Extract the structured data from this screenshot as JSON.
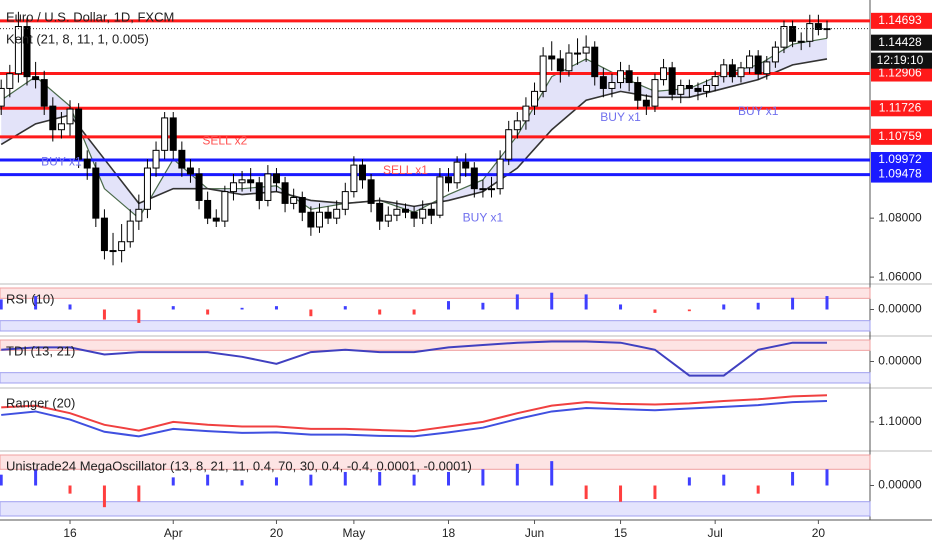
{
  "chart_data": [
    {
      "type": "candlestick",
      "title": "Euro / U.S. Dollar, 1D, FXCM",
      "subtitle": "Kent (21, 8, 11, 1, 0.005)",
      "xlim": [
        -0.14,
        101
      ],
      "ylim": [
        1.058,
        1.154
      ],
      "yticks": [
        {
          "value": 1.06,
          "label": "1.06000"
        },
        {
          "value": 1.08,
          "label": "1.08000"
        }
      ],
      "xticks": [
        {
          "value": 8,
          "label": "16"
        },
        {
          "value": 20,
          "label": "Apr"
        },
        {
          "value": 32,
          "label": "20"
        },
        {
          "value": 41,
          "label": "May"
        },
        {
          "value": 52,
          "label": "18"
        },
        {
          "value": 62,
          "label": "Jun"
        },
        {
          "value": 72,
          "label": "15"
        },
        {
          "value": 83,
          "label": "Jul"
        },
        {
          "value": 95,
          "label": "20"
        }
      ],
      "up_color": "#ffffff",
      "down_color": "#000000",
      "ohlc": [
        [
          1.118,
          1.127,
          1.115,
          1.124
        ],
        [
          1.124,
          1.132,
          1.121,
          1.129
        ],
        [
          1.129,
          1.15,
          1.126,
          1.145
        ],
        [
          1.145,
          1.148,
          1.125,
          1.128
        ],
        [
          1.128,
          1.133,
          1.124,
          1.127
        ],
        [
          1.127,
          1.13,
          1.115,
          1.118
        ],
        [
          1.118,
          1.121,
          1.106,
          1.11
        ],
        [
          1.11,
          1.116,
          1.107,
          1.112
        ],
        [
          1.112,
          1.12,
          1.108,
          1.117
        ],
        [
          1.117,
          1.119,
          1.097,
          1.1
        ],
        [
          1.1,
          1.103,
          1.093,
          1.097
        ],
        [
          1.097,
          1.099,
          1.077,
          1.08
        ],
        [
          1.08,
          1.083,
          1.066,
          1.069
        ],
        [
          1.069,
          1.075,
          1.064,
          1.069
        ],
        [
          1.069,
          1.078,
          1.065,
          1.072
        ],
        [
          1.072,
          1.083,
          1.07,
          1.079
        ],
        [
          1.079,
          1.088,
          1.076,
          1.083
        ],
        [
          1.083,
          1.1,
          1.08,
          1.097
        ],
        [
          1.097,
          1.106,
          1.094,
          1.103
        ],
        [
          1.103,
          1.116,
          1.1,
          1.114
        ],
        [
          1.114,
          1.116,
          1.1,
          1.103
        ],
        [
          1.103,
          1.106,
          1.094,
          1.097
        ],
        [
          1.097,
          1.1,
          1.092,
          1.095
        ],
        [
          1.095,
          1.097,
          1.083,
          1.086
        ],
        [
          1.086,
          1.089,
          1.078,
          1.08
        ],
        [
          1.08,
          1.083,
          1.077,
          1.079
        ],
        [
          1.079,
          1.091,
          1.077,
          1.089
        ],
        [
          1.089,
          1.095,
          1.086,
          1.092
        ],
        [
          1.092,
          1.096,
          1.089,
          1.093
        ],
        [
          1.093,
          1.097,
          1.089,
          1.092
        ],
        [
          1.092,
          1.094,
          1.083,
          1.086
        ],
        [
          1.086,
          1.098,
          1.084,
          1.095
        ],
        [
          1.095,
          1.097,
          1.089,
          1.092
        ],
        [
          1.092,
          1.094,
          1.082,
          1.085
        ],
        [
          1.085,
          1.09,
          1.083,
          1.087
        ],
        [
          1.087,
          1.089,
          1.079,
          1.082
        ],
        [
          1.082,
          1.084,
          1.074,
          1.077
        ],
        [
          1.077,
          1.085,
          1.075,
          1.082
        ],
        [
          1.082,
          1.084,
          1.078,
          1.08
        ],
        [
          1.08,
          1.086,
          1.078,
          1.083
        ],
        [
          1.083,
          1.092,
          1.081,
          1.089
        ],
        [
          1.089,
          1.101,
          1.087,
          1.098
        ],
        [
          1.098,
          1.1,
          1.09,
          1.093
        ],
        [
          1.093,
          1.095,
          1.082,
          1.085
        ],
        [
          1.085,
          1.087,
          1.076,
          1.079
        ],
        [
          1.079,
          1.084,
          1.077,
          1.081
        ],
        [
          1.081,
          1.086,
          1.079,
          1.083
        ],
        [
          1.083,
          1.085,
          1.08,
          1.082
        ],
        [
          1.082,
          1.084,
          1.077,
          1.08
        ],
        [
          1.08,
          1.086,
          1.078,
          1.083
        ],
        [
          1.083,
          1.085,
          1.078,
          1.081
        ],
        [
          1.081,
          1.097,
          1.08,
          1.094
        ],
        [
          1.094,
          1.097,
          1.089,
          1.092
        ],
        [
          1.092,
          1.101,
          1.09,
          1.099
        ],
        [
          1.099,
          1.102,
          1.094,
          1.097
        ],
        [
          1.097,
          1.099,
          1.087,
          1.09
        ],
        [
          1.09,
          1.093,
          1.087,
          1.09
        ],
        [
          1.09,
          1.094,
          1.087,
          1.09
        ],
        [
          1.09,
          1.103,
          1.088,
          1.1
        ],
        [
          1.1,
          1.113,
          1.098,
          1.11
        ],
        [
          1.11,
          1.116,
          1.107,
          1.113
        ],
        [
          1.113,
          1.121,
          1.11,
          1.118
        ],
        [
          1.118,
          1.126,
          1.115,
          1.123
        ],
        [
          1.123,
          1.138,
          1.121,
          1.135
        ],
        [
          1.135,
          1.14,
          1.13,
          1.134
        ],
        [
          1.134,
          1.137,
          1.126,
          1.13
        ],
        [
          1.13,
          1.139,
          1.128,
          1.136
        ],
        [
          1.136,
          1.141,
          1.132,
          1.136
        ],
        [
          1.136,
          1.142,
          1.133,
          1.138
        ],
        [
          1.138,
          1.14,
          1.125,
          1.128
        ],
        [
          1.128,
          1.131,
          1.121,
          1.124
        ],
        [
          1.124,
          1.129,
          1.121,
          1.126
        ],
        [
          1.126,
          1.133,
          1.124,
          1.13
        ],
        [
          1.13,
          1.132,
          1.123,
          1.126
        ],
        [
          1.126,
          1.128,
          1.117,
          1.12
        ],
        [
          1.12,
          1.122,
          1.115,
          1.118
        ],
        [
          1.118,
          1.129,
          1.116,
          1.127
        ],
        [
          1.127,
          1.134,
          1.125,
          1.131
        ],
        [
          1.131,
          1.133,
          1.12,
          1.122
        ],
        [
          1.122,
          1.127,
          1.119,
          1.125
        ],
        [
          1.125,
          1.127,
          1.121,
          1.124
        ],
        [
          1.124,
          1.126,
          1.12,
          1.123
        ],
        [
          1.123,
          1.127,
          1.121,
          1.125
        ],
        [
          1.125,
          1.13,
          1.123,
          1.128
        ],
        [
          1.128,
          1.134,
          1.126,
          1.132
        ],
        [
          1.132,
          1.134,
          1.126,
          1.128
        ],
        [
          1.128,
          1.133,
          1.126,
          1.131
        ],
        [
          1.131,
          1.137,
          1.129,
          1.135
        ],
        [
          1.135,
          1.137,
          1.127,
          1.129
        ],
        [
          1.129,
          1.135,
          1.127,
          1.133
        ],
        [
          1.133,
          1.14,
          1.131,
          1.138
        ],
        [
          1.138,
          1.147,
          1.136,
          1.145
        ],
        [
          1.145,
          1.147,
          1.138,
          1.14
        ],
        [
          1.14,
          1.143,
          1.137,
          1.14
        ],
        [
          1.14,
          1.149,
          1.138,
          1.146
        ],
        [
          1.146,
          1.149,
          1.142,
          1.144
        ],
        [
          1.144,
          1.147,
          1.141,
          1.1443
        ]
      ],
      "ribbon_x": [
        0,
        4,
        8,
        12,
        16,
        20,
        24,
        28,
        32,
        36,
        40,
        44,
        48,
        52,
        56,
        60,
        64,
        68,
        72,
        76,
        80,
        84,
        88,
        92,
        96
      ],
      "ribbon_fast": [
        1.12,
        1.128,
        1.118,
        1.09,
        1.08,
        1.1,
        1.09,
        1.09,
        1.091,
        1.083,
        1.085,
        1.086,
        1.082,
        1.088,
        1.093,
        1.108,
        1.128,
        1.134,
        1.128,
        1.123,
        1.124,
        1.129,
        1.132,
        1.139,
        1.141
      ],
      "ribbon_slow": [
        1.105,
        1.112,
        1.115,
        1.1,
        1.085,
        1.09,
        1.09,
        1.088,
        1.089,
        1.086,
        1.085,
        1.086,
        1.084,
        1.086,
        1.089,
        1.097,
        1.11,
        1.12,
        1.123,
        1.121,
        1.121,
        1.124,
        1.127,
        1.132,
        1.134
      ],
      "levels": [
        {
          "value": 1.14693,
          "color": "#ff1a1a"
        },
        {
          "value": 1.12906,
          "color": "#ff1a1a"
        },
        {
          "value": 1.11726,
          "color": "#ff1a1a"
        },
        {
          "value": 1.10759,
          "color": "#ff1a1a"
        },
        {
          "value": 1.09972,
          "color": "#1a1aff"
        },
        {
          "value": 1.09478,
          "color": "#1a1aff"
        }
      ],
      "last": 1.14428,
      "time_label": "12:19:10",
      "annotations": [
        {
          "text": "BUY x1",
          "x": 7,
          "y": 1.099,
          "color": "#7070ee"
        },
        {
          "text": "SELL x2",
          "x": 26,
          "y": 1.106,
          "color": "#ff5050"
        },
        {
          "text": "SELL x1",
          "x": 47,
          "y": 1.096,
          "color": "#ff5050"
        },
        {
          "text": "BUY x1",
          "x": 56,
          "y": 1.08,
          "color": "#7070ee"
        },
        {
          "text": "BUY x1",
          "x": 72,
          "y": 1.114,
          "color": "#7070ee"
        },
        {
          "text": "BUY x1",
          "x": 88,
          "y": 1.116,
          "color": "#7070ee"
        }
      ]
    },
    {
      "type": "bar",
      "title": "RSI (10)",
      "x": [
        0,
        4,
        8,
        12,
        16,
        20,
        24,
        28,
        32,
        36,
        40,
        44,
        48,
        52,
        56,
        60,
        64,
        68,
        72,
        76,
        80,
        84,
        88,
        92,
        96
      ],
      "values": [
        0.6,
        0.8,
        0.3,
        -0.6,
        -0.8,
        0.2,
        -0.3,
        0.1,
        0.2,
        -0.4,
        0.2,
        -0.3,
        -0.3,
        0.5,
        0.4,
        0.9,
        1.0,
        0.9,
        0.3,
        -0.2,
        -0.1,
        0.3,
        0.4,
        0.7,
        0.8
      ],
      "pos_color": "#3f3fff",
      "neg_color": "#ff3f3f",
      "ylim": [
        -1.4,
        1.4
      ],
      "yticks": [
        {
          "value": 0,
          "label": "0.00000"
        }
      ]
    },
    {
      "type": "line",
      "title": "TDI (13, 21)",
      "x": [
        0,
        4,
        8,
        12,
        16,
        20,
        24,
        28,
        32,
        36,
        40,
        44,
        48,
        52,
        56,
        60,
        64,
        68,
        72,
        76,
        80,
        84,
        88,
        92,
        96
      ],
      "series": [
        {
          "color": "#4040c0",
          "values": [
            0.5,
            0.6,
            0.6,
            0.3,
            0.4,
            0.4,
            0.4,
            0.2,
            -0.1,
            0.4,
            0.5,
            0.4,
            0.4,
            0.6,
            0.7,
            0.8,
            0.85,
            0.85,
            0.8,
            0.5,
            -0.6,
            -0.6,
            0.5,
            0.8,
            0.8
          ]
        }
      ],
      "ylim": [
        -1,
        1
      ],
      "yticks": [
        {
          "value": 0,
          "label": "0.00000"
        }
      ]
    },
    {
      "type": "line",
      "title": "Ranger (20)",
      "x": [
        0,
        4,
        8,
        12,
        16,
        20,
        24,
        28,
        32,
        36,
        40,
        44,
        48,
        52,
        56,
        60,
        64,
        68,
        72,
        76,
        80,
        84,
        88,
        92,
        96
      ],
      "series": [
        {
          "color": "#f04040",
          "values": [
            1.125,
            1.128,
            1.115,
            1.095,
            1.085,
            1.1,
            1.095,
            1.092,
            1.092,
            1.088,
            1.088,
            1.086,
            1.084,
            1.092,
            1.1,
            1.115,
            1.128,
            1.134,
            1.131,
            1.13,
            1.132,
            1.136,
            1.139,
            1.144,
            1.146
          ]
        },
        {
          "color": "#4050e0",
          "values": [
            1.112,
            1.118,
            1.104,
            1.083,
            1.075,
            1.088,
            1.084,
            1.081,
            1.082,
            1.078,
            1.078,
            1.076,
            1.075,
            1.082,
            1.09,
            1.105,
            1.118,
            1.124,
            1.122,
            1.12,
            1.123,
            1.126,
            1.129,
            1.134,
            1.136
          ]
        }
      ],
      "ylim": [
        1.055,
        1.155
      ],
      "yticks": [
        {
          "value": 1.1,
          "label": "1.10000"
        }
      ]
    },
    {
      "type": "bar",
      "title": "Unistrade24 MegaOscillator (13, 8, 21, 11, 0.4, 70, 30, 0.4, -0.4, 0.0001, -0.0001)",
      "x": [
        0,
        4,
        8,
        12,
        16,
        20,
        24,
        28,
        32,
        36,
        40,
        44,
        48,
        52,
        56,
        60,
        64,
        68,
        72,
        76,
        80,
        84,
        88,
        92,
        96
      ],
      "values": [
        0.4,
        0.6,
        -0.3,
        -0.8,
        -0.6,
        0.3,
        0.4,
        0.2,
        0.3,
        0.4,
        0.5,
        0.5,
        0.4,
        0.5,
        0.6,
        0.8,
        0.9,
        -0.5,
        -0.6,
        -0.5,
        0.3,
        0.4,
        -0.3,
        0.5,
        0.6
      ],
      "pos_color": "#3f3fff",
      "neg_color": "#ff3f3f",
      "ylim": [
        -1.2,
        1.2
      ],
      "yticks": [
        {
          "value": 0,
          "label": "0.00000"
        }
      ]
    }
  ]
}
